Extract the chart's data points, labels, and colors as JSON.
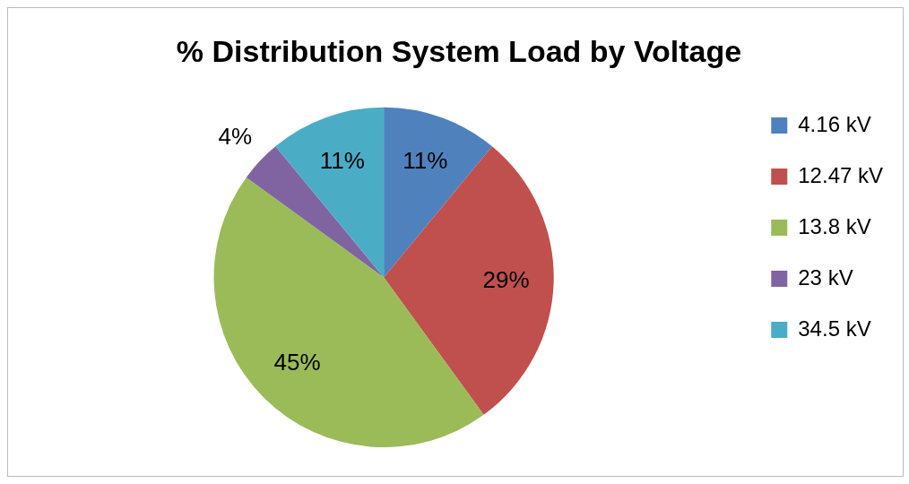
{
  "chart_data": {
    "type": "pie",
    "title": "% Distribution System Load by Voltage",
    "categories": [
      "4.16 kV",
      "12.47 kV",
      "13.8 kV",
      "23 kV",
      "34.5 kV"
    ],
    "values": [
      11,
      29,
      45,
      4,
      11
    ],
    "colors": [
      "#4f81bd",
      "#c0504d",
      "#9bbb59",
      "#8064a2",
      "#4bacc6"
    ],
    "value_labels": [
      "11%",
      "29%",
      "45%",
      "4%",
      "11%"
    ],
    "legend": "right"
  }
}
